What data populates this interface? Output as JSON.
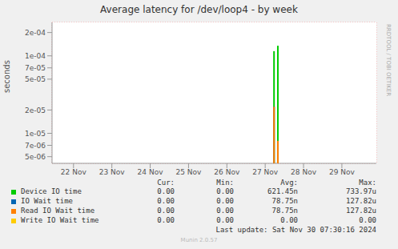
{
  "chart_data": {
    "type": "line",
    "title": "Average latency for /dev/loop4 - by week",
    "y_label": "seconds",
    "side_text": "RRDTOOL / TOBI OETIKER",
    "log": "y",
    "grid": true,
    "xlim": [
      21.44,
      29.9
    ],
    "xticks": [
      {
        "value": 22,
        "label": "22 Nov"
      },
      {
        "value": 23,
        "label": "23 Nov"
      },
      {
        "value": 24,
        "label": "24 Nov"
      },
      {
        "value": 25,
        "label": "25 Nov"
      },
      {
        "value": 26,
        "label": "26 Nov"
      },
      {
        "value": 27,
        "label": "27 Nov"
      },
      {
        "value": 28,
        "label": "28 Nov"
      },
      {
        "value": 29,
        "label": "29 Nov"
      }
    ],
    "ylim": [
      4.1e-06,
      0.00027
    ],
    "yticks": [
      {
        "value": 5e-06,
        "label": "5e-06"
      },
      {
        "value": 7e-06,
        "label": "7e-06"
      },
      {
        "value": 1e-05,
        "label": "1e-05"
      },
      {
        "value": 2e-05,
        "label": "2e-05"
      },
      {
        "value": 5e-05,
        "label": "5e-05"
      },
      {
        "value": 7e-05,
        "label": "7e-05"
      },
      {
        "value": 0.0001,
        "label": "1e-04"
      },
      {
        "value": 0.0002,
        "label": "2e-04"
      }
    ],
    "x": [
      27.23,
      27.33
    ],
    "series": [
      {
        "name": "Device IO time",
        "color": "#00cc00",
        "values": [
          0.000115,
          0.000135
        ],
        "stats": [
          "0.00",
          "0.00",
          "621.45n",
          "733.97u"
        ]
      },
      {
        "name": "IO Wait time",
        "color": "#0066b3",
        "values": [
          2.2e-05,
          8e-06
        ],
        "stats": [
          "0.00",
          "0.00",
          "78.75n",
          "127.82u"
        ]
      },
      {
        "name": "Read IO Wait time",
        "color": "#ff8000",
        "values": [
          2.2e-05,
          8e-06
        ],
        "stats": [
          "0.00",
          "0.00",
          "78.75n",
          "127.82u"
        ]
      },
      {
        "name": "Write IO Wait time",
        "color": "#ffcc00",
        "values": [
          null,
          null
        ],
        "stats": [
          "0.00",
          "0.00",
          "0.00",
          "0.00"
        ]
      }
    ],
    "columns": [
      "Cur:",
      "Min:",
      "Avg:",
      "Max:"
    ],
    "footer": "Last update: Sat Nov 30 07:30:16 2024",
    "credit": "Munin 2.0.57"
  }
}
